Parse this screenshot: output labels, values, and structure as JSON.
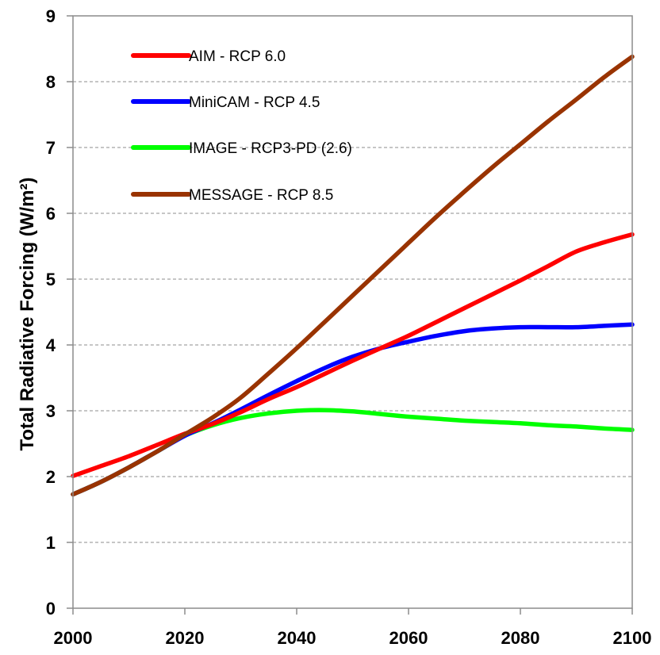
{
  "chart_data": {
    "type": "line",
    "title": "",
    "xlabel": "",
    "ylabel": "Total Radiative Forcing (W/m²)",
    "xlim": [
      2000,
      2100
    ],
    "ylim": [
      0,
      9
    ],
    "x_ticks": [
      "2000",
      "2020",
      "2040",
      "2060",
      "2080",
      "2100"
    ],
    "y_ticks": [
      "0",
      "1",
      "2",
      "3",
      "4",
      "5",
      "6",
      "7",
      "8",
      "9"
    ],
    "grid": "horizontal dashed",
    "legend_position": "top-left",
    "x": [
      2000,
      2005,
      2010,
      2015,
      2020,
      2025,
      2030,
      2035,
      2040,
      2045,
      2050,
      2055,
      2060,
      2065,
      2070,
      2075,
      2080,
      2085,
      2090,
      2095,
      2100
    ],
    "series": [
      {
        "name": "AIM - RCP 6.0",
        "color": "#ff0000",
        "values": [
          2.01,
          2.16,
          2.31,
          2.48,
          2.65,
          2.8,
          2.98,
          3.18,
          3.36,
          3.56,
          3.76,
          3.95,
          4.14,
          4.35,
          4.56,
          4.77,
          4.98,
          5.2,
          5.42,
          5.56,
          5.68
        ]
      },
      {
        "name": "MiniCAM - RCP 4.5",
        "color": "#0000ff",
        "values": [
          1.73,
          1.92,
          2.14,
          2.38,
          2.62,
          2.81,
          3.02,
          3.24,
          3.45,
          3.65,
          3.82,
          3.95,
          4.05,
          4.14,
          4.21,
          4.25,
          4.27,
          4.27,
          4.27,
          4.29,
          4.31
        ]
      },
      {
        "name": "IMAGE - RCP3-PD (2.6)",
        "color": "#00ff00",
        "values": [
          1.73,
          1.92,
          2.14,
          2.38,
          2.62,
          2.78,
          2.89,
          2.96,
          3.0,
          3.01,
          2.99,
          2.95,
          2.91,
          2.88,
          2.85,
          2.83,
          2.81,
          2.78,
          2.76,
          2.73,
          2.71
        ]
      },
      {
        "name": "MESSAGE - RCP 8.5",
        "color": "#993300",
        "values": [
          1.73,
          1.92,
          2.14,
          2.38,
          2.64,
          2.9,
          3.2,
          3.57,
          3.95,
          4.35,
          4.75,
          5.15,
          5.55,
          5.95,
          6.33,
          6.7,
          7.05,
          7.4,
          7.73,
          8.07,
          8.38
        ]
      }
    ]
  }
}
